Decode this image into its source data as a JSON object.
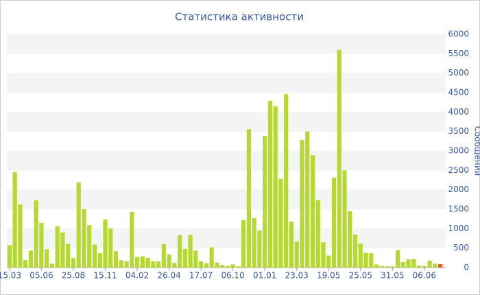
{
  "chart_data": {
    "type": "bar",
    "title": "Статистика активности",
    "y_label": "Сообщений",
    "categories": [
      "15.03",
      null,
      null,
      null,
      null,
      null,
      "05.06",
      null,
      null,
      null,
      null,
      null,
      "25.08",
      null,
      null,
      null,
      null,
      null,
      "15.11",
      null,
      null,
      null,
      null,
      null,
      "04.02",
      null,
      null,
      null,
      null,
      null,
      "26.04",
      null,
      null,
      null,
      null,
      null,
      "17.07",
      null,
      null,
      null,
      null,
      null,
      "06.10",
      null,
      null,
      null,
      null,
      null,
      "01.01",
      null,
      null,
      null,
      null,
      null,
      "23.03",
      null,
      null,
      null,
      null,
      null,
      "19.05",
      null,
      null,
      null,
      null,
      null,
      "25.05",
      null,
      null,
      null,
      null,
      null,
      "31.05",
      null,
      null,
      null,
      null,
      null,
      "06.06",
      null,
      null,
      null
    ],
    "values": [
      570,
      2450,
      1620,
      190,
      440,
      1730,
      1150,
      470,
      100,
      1060,
      900,
      610,
      250,
      2190,
      1500,
      1090,
      590,
      370,
      1240,
      1010,
      420,
      190,
      160,
      1430,
      270,
      290,
      250,
      160,
      160,
      610,
      340,
      120,
      840,
      480,
      840,
      440,
      160,
      110,
      520,
      130,
      70,
      40,
      80,
      30,
      1220,
      3560,
      1270,
      950,
      3390,
      4290,
      4150,
      2280,
      4460,
      1180,
      670,
      3280,
      3500,
      2890,
      1730,
      650,
      310,
      2310,
      5600,
      2500,
      1450,
      850,
      620,
      380,
      370,
      80,
      40,
      30,
      30,
      450,
      140,
      210,
      220,
      50,
      40,
      180,
      100,
      90
    ],
    "color": "#b5d930",
    "last_bar_color": "#e8602c",
    "ylim": [
      0,
      6000
    ],
    "yticks": [
      0,
      500,
      1000,
      1500,
      2000,
      2500,
      3000,
      3500,
      4000,
      4500,
      5000,
      5500,
      6000
    ],
    "grid": true
  }
}
